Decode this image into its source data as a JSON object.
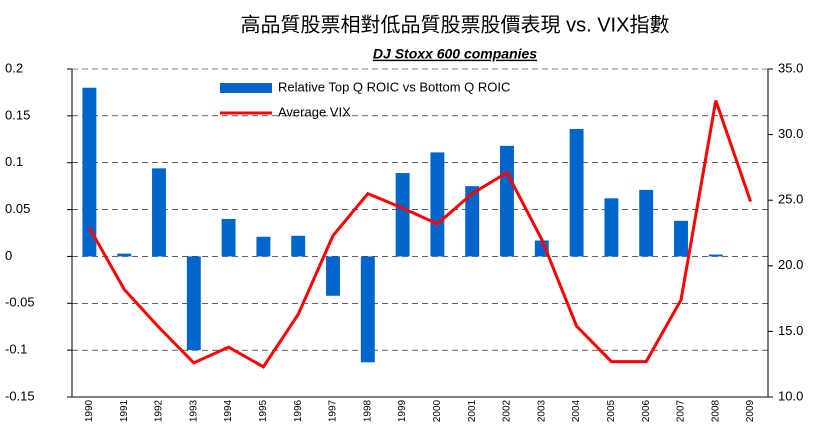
{
  "chart_data": {
    "type": "bar-line",
    "title": "高品質股票相對低品質股票股價表現 vs. VIX指數",
    "subtitle": "DJ Stoxx 600 companies",
    "categories": [
      "1990",
      "1991",
      "1992",
      "1993",
      "1994",
      "1995",
      "1996",
      "1997",
      "1998",
      "1999",
      "2000",
      "2001",
      "2002",
      "2003",
      "2004",
      "2005",
      "2006",
      "2007",
      "2008",
      "2009"
    ],
    "series": [
      {
        "name": "Relative Top Q ROIC vs Bottom Q ROIC",
        "color": "#0066cc",
        "type": "bar",
        "values": [
          0.18,
          0.003,
          0.094,
          -0.1,
          0.04,
          0.021,
          0.022,
          -0.042,
          -0.113,
          0.089,
          0.111,
          0.075,
          0.118,
          0.017,
          0.136,
          0.062,
          0.071,
          0.038,
          0.002,
          null
        ]
      },
      {
        "name": "Average VIX",
        "color": "#ff0000",
        "type": "line",
        "axis": "y2",
        "values": [
          22.9,
          18.2,
          15.3,
          12.6,
          13.8,
          12.3,
          16.3,
          22.3,
          25.5,
          24.4,
          23.2,
          25.5,
          27.1,
          22.0,
          15.4,
          12.7,
          12.7,
          17.4,
          32.6,
          24.9
        ]
      }
    ],
    "ylim": [
      -0.15,
      0.2
    ],
    "yticks": [
      0.2,
      0.15,
      0.1,
      0.05,
      0,
      -0.05,
      -0.1,
      -0.15
    ],
    "y2lim": [
      10,
      35
    ],
    "y2ticks": [
      {
        "value": 35,
        "label": "35.0"
      },
      {
        "value": 30,
        "label": "30.0"
      },
      {
        "value": 25,
        "label": "25.0"
      },
      {
        "value": 20,
        "label": "20.0"
      },
      {
        "value": 15,
        "label": "15.0"
      },
      {
        "value": 10,
        "label": "10.0"
      }
    ],
    "grid": true,
    "legend": "top"
  }
}
